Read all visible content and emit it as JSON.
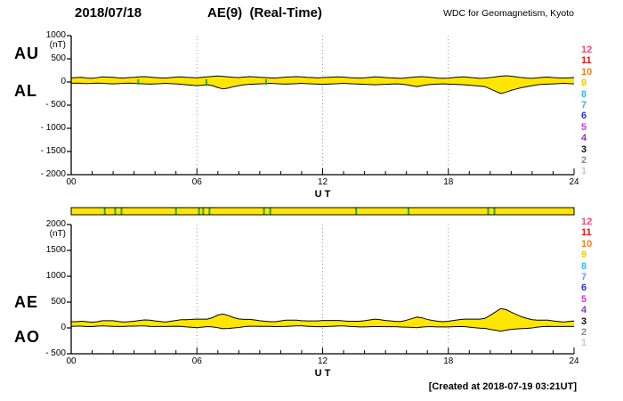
{
  "header": {
    "date": "2018/07/18",
    "title": "AE(9)  (Real-Time)",
    "source": "WDC for Geomagnetism, Kyoto"
  },
  "footer": {
    "created": "[Created at 2018-07-19 03:21UT]"
  },
  "station_legend": {
    "values": [
      12,
      11,
      10,
      9,
      8,
      7,
      6,
      5,
      4,
      3,
      2,
      1
    ],
    "colors": [
      "#ef4b77",
      "#e01818",
      "#f08018",
      "#e6cf00",
      "#20c4ec",
      "#58a0f8",
      "#2832d8",
      "#d835d8",
      "#8c35c8",
      "#111111",
      "#8c8c8c",
      "#c9c9c9"
    ]
  },
  "availability_strip": {
    "color": "#ffe600",
    "border": "#000000",
    "mark_color": "#33a433",
    "marks_hours": [
      1.6,
      2.1,
      2.4,
      5.0,
      6.1,
      6.3,
      6.6,
      9.2,
      9.5,
      13.6,
      16.1,
      19.9,
      20.2
    ]
  },
  "chart_data": [
    {
      "type": "area",
      "name": "AU / AL indices",
      "left_labels": [
        "AU",
        "AL"
      ],
      "unit": "(nT)",
      "xlabel": "U T",
      "xlim": [
        0,
        24
      ],
      "xtick_labels": [
        "00",
        "06",
        "12",
        "18",
        "24"
      ],
      "xtick_values": [
        0,
        6,
        12,
        18,
        24
      ],
      "grid_hours": [
        6,
        12,
        18
      ],
      "ylim": [
        -2000,
        1000
      ],
      "yticks": [
        {
          "label": "1000",
          "value": 1000
        },
        {
          "label": "500",
          "value": 500
        },
        {
          "label": "0",
          "value": 0
        },
        {
          "label": "- 500",
          "value": -500
        },
        {
          "label": "- 1000",
          "value": -1000
        },
        {
          "label": "- 1500",
          "value": -1500
        },
        {
          "label": "- 2000",
          "value": -2000
        }
      ],
      "sample_interval_hours": 0.25,
      "fill_color": "#ffe600",
      "line_color": "#000000",
      "gap_marks_hours": [
        3.2,
        6.45,
        9.3
      ],
      "series": [
        {
          "name": "AU",
          "values": [
            90,
            95,
            100,
            85,
            80,
            95,
            110,
            105,
            100,
            90,
            85,
            95,
            100,
            110,
            115,
            105,
            95,
            90,
            85,
            95,
            105,
            110,
            100,
            95,
            90,
            100,
            110,
            120,
            130,
            120,
            110,
            100,
            95,
            105,
            115,
            110,
            100,
            95,
            90,
            85,
            95,
            105,
            110,
            115,
            110,
            100,
            95,
            90,
            95,
            100,
            105,
            110,
            105,
            95,
            90,
            85,
            90,
            100,
            110,
            105,
            95,
            90,
            85,
            80,
            90,
            100,
            110,
            115,
            105,
            95,
            85,
            80,
            85,
            95,
            105,
            110,
            100,
            90,
            80,
            85,
            95,
            110,
            125,
            135,
            125,
            110,
            95,
            85,
            80,
            90,
            100,
            105,
            95,
            90,
            85,
            90,
            95
          ]
        },
        {
          "name": "AL",
          "values": [
            -30,
            -25,
            -30,
            -35,
            -30,
            -25,
            -30,
            -35,
            -40,
            -35,
            -30,
            -25,
            -30,
            -35,
            -40,
            -45,
            -40,
            -35,
            -30,
            -35,
            -40,
            -50,
            -60,
            -70,
            -80,
            -70,
            -60,
            -80,
            -120,
            -150,
            -130,
            -100,
            -80,
            -60,
            -50,
            -45,
            -40,
            -35,
            -30,
            -35,
            -40,
            -45,
            -40,
            -35,
            -30,
            -35,
            -40,
            -45,
            -50,
            -45,
            -40,
            -35,
            -30,
            -35,
            -40,
            -45,
            -50,
            -55,
            -60,
            -55,
            -50,
            -45,
            -40,
            -45,
            -60,
            -80,
            -100,
            -80,
            -60,
            -50,
            -45,
            -40,
            -45,
            -50,
            -55,
            -60,
            -70,
            -80,
            -90,
            -100,
            -150,
            -200,
            -250,
            -220,
            -180,
            -150,
            -120,
            -100,
            -80,
            -60,
            -50,
            -45,
            -40,
            -35,
            -30,
            -35,
            -40
          ]
        }
      ]
    },
    {
      "type": "area",
      "name": "AE / AO indices",
      "left_labels": [
        "AE",
        "AO"
      ],
      "unit": "(nT)",
      "xlabel": "U T",
      "xlim": [
        0,
        24
      ],
      "xtick_labels": [
        "00",
        "06",
        "12",
        "18",
        "24"
      ],
      "xtick_values": [
        0,
        6,
        12,
        18,
        24
      ],
      "grid_hours": [
        6,
        12,
        18
      ],
      "ylim": [
        -500,
        2000
      ],
      "yticks": [
        {
          "label": "2000",
          "value": 2000
        },
        {
          "label": "1500",
          "value": 1500
        },
        {
          "label": "1000",
          "value": 1000
        },
        {
          "label": "500",
          "value": 500
        },
        {
          "label": "0",
          "value": 0
        },
        {
          "label": "- 500",
          "value": -500
        }
      ],
      "sample_interval_hours": 0.25,
      "fill_color": "#ffe600",
      "line_color": "#000000",
      "gap_marks_hours": [],
      "series": [
        {
          "name": "AE",
          "values": [
            120,
            120,
            130,
            120,
            110,
            120,
            140,
            140,
            140,
            125,
            115,
            120,
            130,
            145,
            155,
            150,
            135,
            125,
            115,
            130,
            145,
            160,
            160,
            165,
            170,
            170,
            170,
            200,
            250,
            270,
            240,
            200,
            175,
            165,
            165,
            155,
            140,
            130,
            120,
            120,
            135,
            150,
            150,
            150,
            140,
            135,
            135,
            135,
            145,
            145,
            145,
            145,
            135,
            130,
            130,
            130,
            140,
            155,
            170,
            160,
            145,
            135,
            125,
            125,
            150,
            180,
            210,
            195,
            165,
            145,
            130,
            120,
            130,
            145,
            160,
            170,
            170,
            170,
            170,
            185,
            245,
            310,
            375,
            355,
            305,
            260,
            215,
            185,
            160,
            150,
            150,
            150,
            135,
            125,
            115,
            125,
            135
          ]
        },
        {
          "name": "AO",
          "values": [
            30,
            35,
            35,
            25,
            25,
            35,
            40,
            35,
            30,
            28,
            28,
            35,
            35,
            38,
            38,
            30,
            28,
            28,
            28,
            30,
            33,
            30,
            20,
            13,
            5,
            15,
            25,
            20,
            5,
            -15,
            -10,
            0,
            8,
            23,
            33,
            33,
            30,
            30,
            30,
            25,
            28,
            30,
            35,
            40,
            40,
            33,
            28,
            23,
            23,
            28,
            33,
            38,
            38,
            30,
            25,
            20,
            20,
            23,
            25,
            25,
            23,
            23,
            23,
            18,
            15,
            10,
            5,
            18,
            23,
            23,
            20,
            20,
            20,
            23,
            25,
            25,
            15,
            5,
            -5,
            -8,
            -28,
            -45,
            -63,
            -43,
            -28,
            -20,
            -13,
            -8,
            0,
            15,
            25,
            30,
            28,
            28,
            28,
            28,
            28
          ]
        }
      ]
    }
  ]
}
